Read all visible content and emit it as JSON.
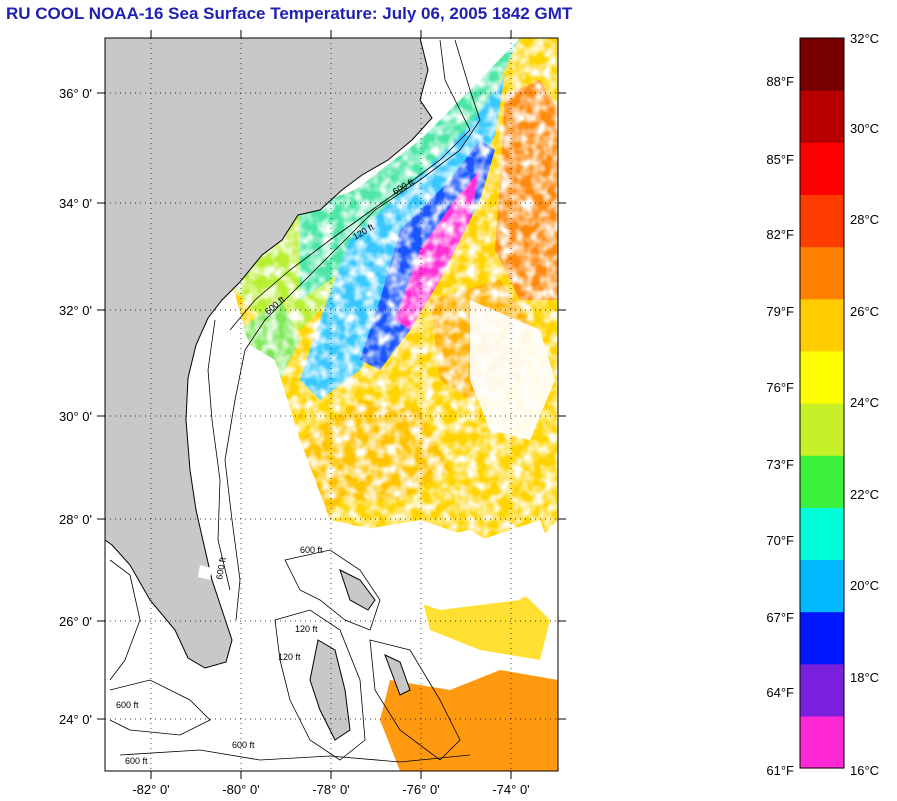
{
  "title": "RU COOL  NOAA-16  Sea Surface Temperature:  July 06, 2005 1842 GMT",
  "map": {
    "lat_range": [
      23,
      37
    ],
    "lon_range": [
      -83,
      -73
    ],
    "lat_ticks": [
      "36° 0'",
      "34° 0'",
      "32° 0'",
      "30° 0'",
      "28° 0'",
      "26° 0'",
      "24° 0'"
    ],
    "lon_ticks": [
      "-82° 0'",
      "-80° 0'",
      "-78° 0'",
      "-76° 0'",
      "-74° 0'"
    ],
    "land_color": "#c8c8c8",
    "no_data_color": "#ffffff",
    "contour_labels": [
      "120 ft",
      "600 ft"
    ]
  },
  "colorbar": {
    "colors": [
      "#ff28d4",
      "#7a1fdc",
      "#0016ff",
      "#00b8ff",
      "#00ffd8",
      "#3cf23c",
      "#c8f028",
      "#ffff00",
      "#ffcc00",
      "#ff8000",
      "#ff3c00",
      "#ff0000",
      "#b80000",
      "#780000"
    ],
    "celsius_labels": [
      "32°C",
      "30°C",
      "28°C",
      "26°C",
      "24°C",
      "22°C",
      "20°C",
      "18°C",
      "16°C"
    ],
    "fahrenheit_labels": [
      "88°F",
      "85°F",
      "82°F",
      "79°F",
      "76°F",
      "73°F",
      "70°F",
      "67°F",
      "64°F",
      "61°F"
    ],
    "celsius_range": [
      16,
      32
    ]
  }
}
